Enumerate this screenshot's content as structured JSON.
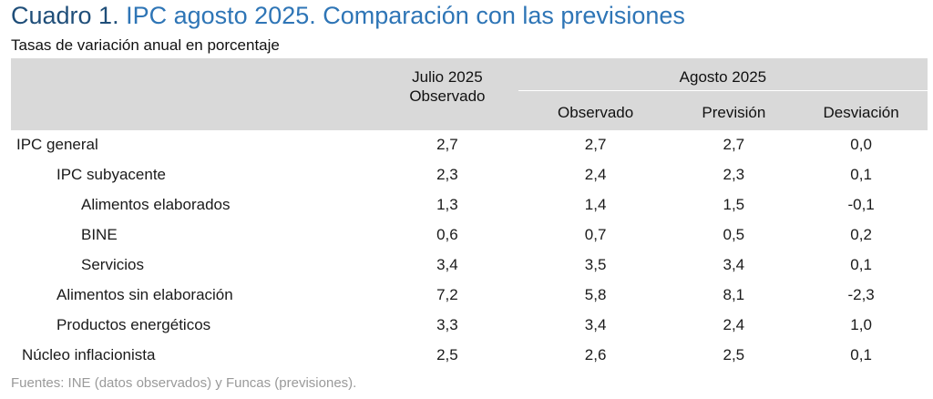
{
  "title": {
    "number": "Cuadro 1.",
    "text": "IPC agosto 2025. Comparación con las previsiones"
  },
  "subtitle": "Tasas de variación anual en porcentaje",
  "header": {
    "col1_line1": "Julio 2025",
    "col1_line2": "Observado",
    "group": "Agosto 2025",
    "sub": [
      "Observado",
      "Previsión",
      "Desviación"
    ]
  },
  "rows": [
    {
      "label": "IPC general",
      "values": [
        "2,7",
        "2,7",
        "2,7",
        "0,0"
      ]
    },
    {
      "label": "IPC subyacente",
      "values": [
        "2,3",
        "2,4",
        "2,3",
        "0,1"
      ]
    },
    {
      "label": "Alimentos elaborados",
      "values": [
        "1,3",
        "1,4",
        "1,5",
        "-0,1"
      ]
    },
    {
      "label": "BINE",
      "values": [
        "0,6",
        "0,7",
        "0,5",
        "0,2"
      ]
    },
    {
      "label": "Servicios",
      "values": [
        "3,4",
        "3,5",
        "3,4",
        "0,1"
      ]
    },
    {
      "label": "Alimentos sin elaboración",
      "values": [
        "7,2",
        "5,8",
        "8,1",
        "-2,3"
      ]
    },
    {
      "label": "Productos energéticos",
      "values": [
        "3,3",
        "3,4",
        "2,4",
        "1,0"
      ]
    },
    {
      "label": "Núcleo inflacionista",
      "values": [
        "2,5",
        "2,6",
        "2,5",
        "0,1"
      ]
    }
  ],
  "source": "Fuentes: INE (datos observados) y Funcas (previsiones).",
  "colors": {
    "title_dark": "#1f4e79",
    "title_light": "#2e75b6",
    "header_bg": "#d9d9d9",
    "source_text": "#9a9a9a"
  }
}
